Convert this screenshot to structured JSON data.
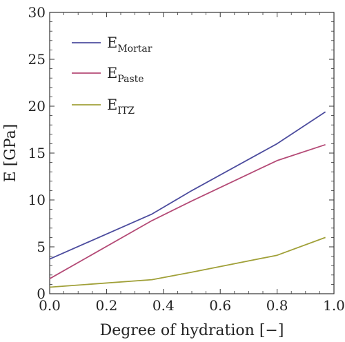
{
  "chart_data": {
    "type": "line",
    "xlabel": "Degree of hydration [−]",
    "ylabel": "E [GPa]",
    "xlim": [
      0,
      1.0
    ],
    "ylim": [
      0,
      30
    ],
    "xticks": [
      "0.0",
      "0.2",
      "0.4",
      "0.6",
      "0.8",
      "1.0"
    ],
    "xtick_values": [
      0,
      0.2,
      0.4,
      0.6,
      0.8,
      1.0
    ],
    "yticks": [
      "0",
      "5",
      "10",
      "15",
      "20",
      "25",
      "30"
    ],
    "ytick_values": [
      0,
      5,
      10,
      15,
      20,
      25,
      30
    ],
    "grid": false,
    "legend_placement": "top-left",
    "series": [
      {
        "name": "E",
        "subscript": "Mortar",
        "color": "#4c4c9e",
        "x": [
          0.0,
          0.36,
          0.5,
          0.8,
          0.97
        ],
        "y": [
          3.7,
          8.5,
          11.0,
          16.0,
          19.4
        ]
      },
      {
        "name": "E",
        "subscript": "Paste",
        "color": "#b44a76",
        "x": [
          0.0,
          0.36,
          0.5,
          0.8,
          0.97
        ],
        "y": [
          1.6,
          7.8,
          9.9,
          14.2,
          15.9
        ]
      },
      {
        "name": "E",
        "subscript": "ITZ",
        "color": "#a0a038",
        "x": [
          0.0,
          0.36,
          0.5,
          0.8,
          0.97
        ],
        "y": [
          0.7,
          1.5,
          2.3,
          4.1,
          6.0
        ]
      }
    ]
  }
}
